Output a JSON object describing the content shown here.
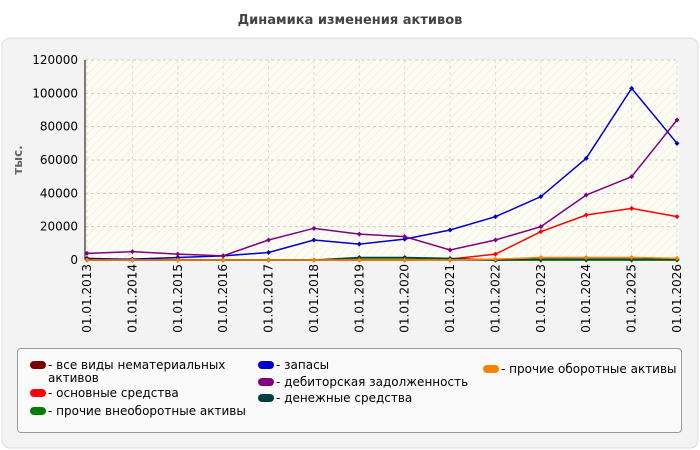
{
  "chart_data": {
    "type": "line",
    "title": "Динамика изменения активов",
    "y_label": "тыс.",
    "categories": [
      "01.01.2013",
      "01.01.2014",
      "01.01.2015",
      "01.01.2016",
      "01.01.2017",
      "01.01.2018",
      "01.01.2019",
      "01.01.2020",
      "01.01.2021",
      "01.01.2022",
      "01.01.2023",
      "01.01.2024",
      "01.01.2025",
      "01.01.2026"
    ],
    "ylim": [
      0,
      120000
    ],
    "yticks": [
      0,
      20000,
      40000,
      60000,
      80000,
      100000,
      120000
    ],
    "grid": true,
    "series": [
      {
        "name": "- все виды нематериальных активов",
        "color": "#7a0000",
        "values": [
          1000,
          300,
          200,
          100,
          0,
          0,
          0,
          0,
          0,
          0,
          0,
          0,
          0,
          0
        ]
      },
      {
        "name": "- основные средства",
        "color": "#ff0000",
        "values": [
          0,
          0,
          0,
          0,
          0,
          0,
          0,
          0,
          500,
          3500,
          17000,
          27000,
          31000,
          26000
        ]
      },
      {
        "name": "- прочие внеоборотные активы",
        "color": "#008000",
        "values": [
          0,
          0,
          0,
          0,
          0,
          0,
          500,
          500,
          500,
          0,
          0,
          0,
          0,
          0
        ]
      },
      {
        "name": "- запасы",
        "color": "#0000cc",
        "values": [
          500,
          500,
          1500,
          2500,
          4500,
          12000,
          9500,
          12500,
          18000,
          26000,
          38000,
          61000,
          103000,
          70000
        ]
      },
      {
        "name": "- дебиторская задолженность",
        "color": "#800080",
        "values": [
          4000,
          5000,
          3500,
          2500,
          12000,
          19000,
          15500,
          14000,
          6000,
          12000,
          20000,
          39000,
          50000,
          84000
        ]
      },
      {
        "name": "- денежные средства",
        "color": "#004040",
        "values": [
          0,
          0,
          0,
          0,
          0,
          0,
          1500,
          1500,
          1000,
          0,
          500,
          500,
          500,
          500
        ]
      },
      {
        "name": "- прочие оборотные активы",
        "color": "#ff8000",
        "values": [
          0,
          0,
          0,
          0,
          0,
          0,
          0,
          0,
          0,
          500,
          1500,
          1500,
          1500,
          1000
        ]
      }
    ]
  }
}
